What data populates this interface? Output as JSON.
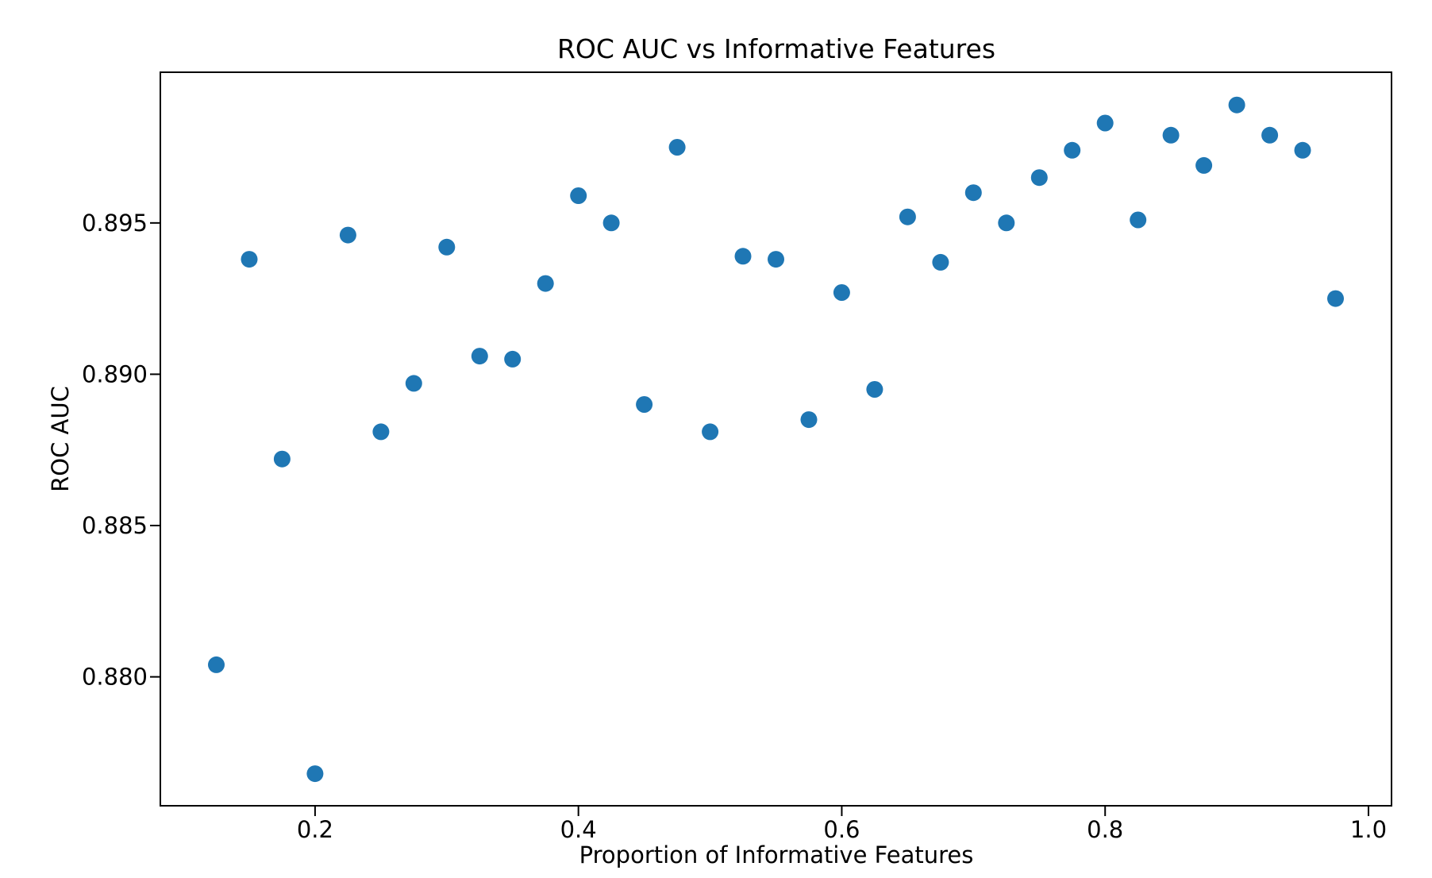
{
  "title": "ROC AUC vs Informative Features",
  "chart_data": {
    "type": "scatter",
    "title": "ROC AUC vs Informative Features",
    "xlabel": "Proportion of Informative Features",
    "ylabel": "ROC AUC",
    "xlim": [
      0.0825,
      1.0175
    ],
    "ylim": [
      0.87574,
      0.89998
    ],
    "grid": false,
    "legend": null,
    "marker_color": "#1f77b4",
    "marker_radius_px": 10.5,
    "spine_color": "#000000",
    "x_ticks": [
      0.2,
      0.4,
      0.6,
      0.8,
      1.0
    ],
    "x_tick_labels": [
      "0.2",
      "0.4",
      "0.6",
      "0.8",
      "1.0"
    ],
    "y_ticks": [
      0.88,
      0.885,
      0.89,
      0.895
    ],
    "y_tick_labels": [
      "0.880",
      "0.885",
      "0.890",
      "0.895"
    ],
    "x": [
      0.125,
      0.15,
      0.175,
      0.2,
      0.225,
      0.25,
      0.275,
      0.3,
      0.325,
      0.35,
      0.375,
      0.4,
      0.425,
      0.45,
      0.475,
      0.5,
      0.525,
      0.55,
      0.575,
      0.6,
      0.625,
      0.65,
      0.675,
      0.7,
      0.725,
      0.75,
      0.775,
      0.8,
      0.825,
      0.85,
      0.875,
      0.9,
      0.925,
      0.95,
      0.975
    ],
    "y": [
      0.8804,
      0.8938,
      0.8872,
      0.8768,
      0.8946,
      0.8881,
      0.8897,
      0.8942,
      0.8906,
      0.8905,
      0.893,
      0.8959,
      0.895,
      0.889,
      0.8975,
      0.8881,
      0.8939,
      0.8938,
      0.8885,
      0.8927,
      0.8895,
      0.8952,
      0.8937,
      0.896,
      0.895,
      0.8965,
      0.8974,
      0.8983,
      0.8951,
      0.8979,
      0.8969,
      0.8989,
      0.8979,
      0.8974,
      0.8925
    ]
  }
}
